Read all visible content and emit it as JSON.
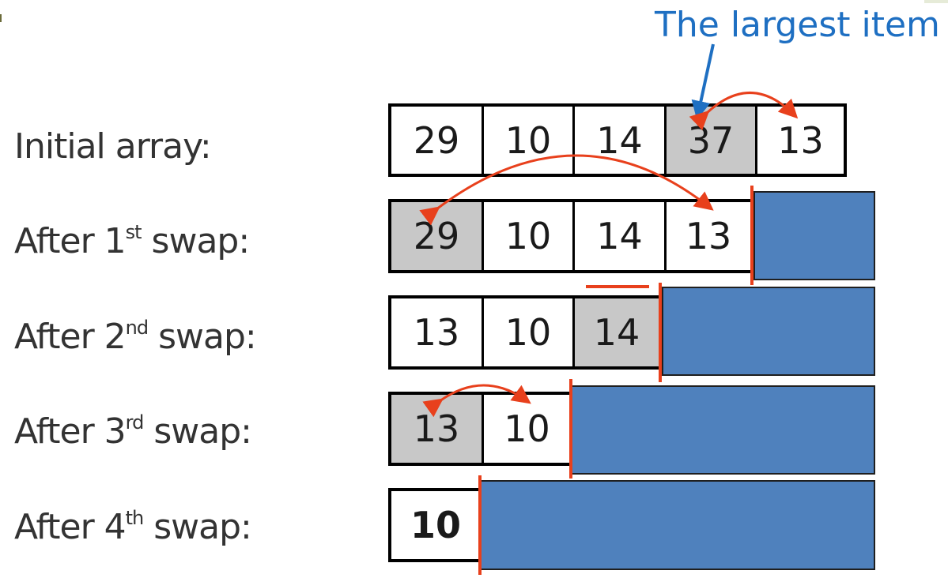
{
  "title": "The largest item",
  "rows": [
    {
      "label_main": "Initial array:",
      "label_sup": "",
      "label_tail": "",
      "cells": [
        {
          "value": "29",
          "highlight": false,
          "bold": false
        },
        {
          "value": "10",
          "highlight": false,
          "bold": false
        },
        {
          "value": "14",
          "highlight": false,
          "bold": false
        },
        {
          "value": "37",
          "highlight": true,
          "bold": false
        },
        {
          "value": "13",
          "highlight": false,
          "bold": false
        }
      ]
    },
    {
      "label_main": "After 1",
      "label_sup": "st",
      "label_tail": " swap:",
      "cells": [
        {
          "value": "29",
          "highlight": true,
          "bold": false
        },
        {
          "value": "10",
          "highlight": false,
          "bold": false
        },
        {
          "value": "14",
          "highlight": false,
          "bold": false
        },
        {
          "value": "13",
          "highlight": false,
          "bold": false
        }
      ]
    },
    {
      "label_main": "After 2",
      "label_sup": "nd",
      "label_tail": " swap:",
      "cells": [
        {
          "value": "13",
          "highlight": false,
          "bold": false
        },
        {
          "value": "10",
          "highlight": false,
          "bold": false
        },
        {
          "value": "14",
          "highlight": true,
          "bold": false
        }
      ]
    },
    {
      "label_main": "After 3",
      "label_sup": "rd",
      "label_tail": " swap:",
      "cells": [
        {
          "value": "13",
          "highlight": true,
          "bold": false
        },
        {
          "value": "10",
          "highlight": false,
          "bold": false
        }
      ]
    },
    {
      "label_main": "After 4",
      "label_sup": "th",
      "label_tail": " swap:",
      "cells": [
        {
          "value": "10",
          "highlight": false,
          "bold": true
        }
      ]
    }
  ],
  "colors": {
    "highlight": "#c8c8c8",
    "sorted_region": "#4f81bd",
    "swap_arrow": "#e8401c",
    "title": "#1e6fc2"
  }
}
